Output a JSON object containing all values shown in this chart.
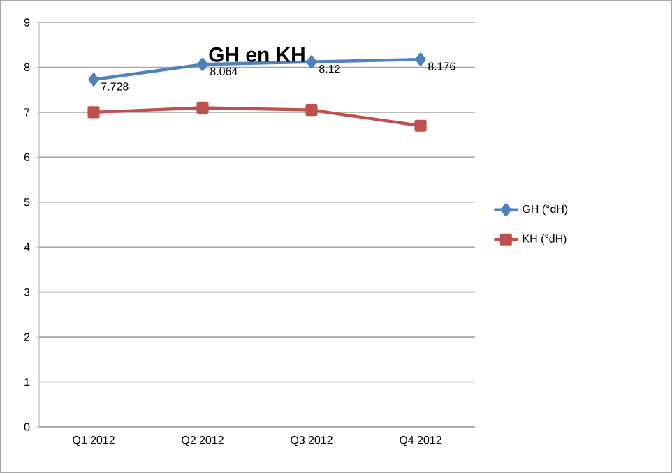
{
  "chart_data": {
    "type": "line",
    "title": "GH en KH",
    "categories": [
      "Q1 2012",
      "Q2 2012",
      "Q3 2012",
      "Q4 2012"
    ],
    "series": [
      {
        "name": "GH (°dH)",
        "color": "#4f81bd",
        "marker": "diamond",
        "values": [
          7.728,
          8.064,
          8.12,
          8.176
        ],
        "value_labels": [
          "7.728",
          "8.064",
          "8.12",
          "8.176"
        ]
      },
      {
        "name": "KH (°dH)",
        "color": "#c0504d",
        "marker": "square",
        "values": [
          7.0,
          7.1,
          7.05,
          6.7
        ]
      }
    ],
    "ylim": [
      0,
      9
    ],
    "yticks": [
      0,
      1,
      2,
      3,
      4,
      5,
      6,
      7,
      8,
      9
    ],
    "grid": "y",
    "legend": "right"
  }
}
